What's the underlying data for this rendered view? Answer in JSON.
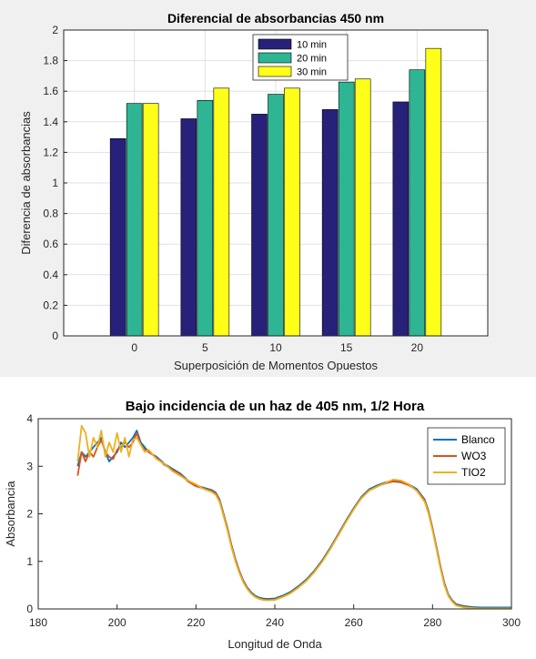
{
  "chart_data": [
    {
      "type": "bar",
      "title": "Diferencial de absorbancias 450 nm",
      "xlabel": "Superposición de Momentos Opuestos",
      "ylabel": "Diferencia de absorbancias",
      "categories": [
        "0",
        "5",
        "10",
        "15",
        "20"
      ],
      "series": [
        {
          "name": "10 min",
          "color": "#27217a",
          "values": [
            1.29,
            1.42,
            1.45,
            1.48,
            1.53
          ]
        },
        {
          "name": "20 min",
          "color": "#2eb594",
          "values": [
            1.52,
            1.54,
            1.58,
            1.66,
            1.74
          ]
        },
        {
          "name": "30 min",
          "color": "#ffff1a",
          "values": [
            1.52,
            1.62,
            1.62,
            1.68,
            1.88
          ]
        }
      ],
      "ylim": [
        0,
        2
      ],
      "yticks": [
        "0",
        "0.2",
        "0.4",
        "0.6",
        "0.8",
        "1",
        "1.2",
        "1.4",
        "1.6",
        "1.8",
        "2"
      ],
      "grid": true,
      "legend": "top-center"
    },
    {
      "type": "line",
      "title": "Bajo incidencia de un haz de 405 nm, 1/2 Hora",
      "xlabel": "Longitud de Onda",
      "ylabel": "Absorbancia",
      "xlim": [
        180,
        300
      ],
      "ylim": [
        0,
        4
      ],
      "xticks": [
        "180",
        "200",
        "220",
        "240",
        "260",
        "280",
        "300"
      ],
      "yticks": [
        "0",
        "1",
        "2",
        "3",
        "4"
      ],
      "grid": false,
      "legend": "top-right",
      "series": [
        {
          "name": "Blanco",
          "color": "#0072bd",
          "x": [
            190,
            191,
            192,
            193,
            194,
            195,
            196,
            197,
            198,
            199,
            200,
            201,
            202,
            203,
            204,
            205,
            206,
            207,
            208,
            210,
            212,
            214,
            216,
            218,
            220,
            222,
            224,
            225,
            226,
            227,
            228,
            229,
            230,
            231,
            232,
            233,
            234,
            235,
            236,
            237,
            238,
            240,
            242,
            244,
            246,
            248,
            250,
            252,
            254,
            256,
            258,
            260,
            262,
            264,
            266,
            268,
            270,
            272,
            274,
            276,
            278,
            279,
            280,
            281,
            282,
            283,
            284,
            285,
            286,
            288,
            290,
            292,
            294,
            296,
            298,
            300
          ],
          "y": [
            3.0,
            3.3,
            3.2,
            3.3,
            3.4,
            3.5,
            3.6,
            3.3,
            3.1,
            3.2,
            3.3,
            3.5,
            3.4,
            3.5,
            3.6,
            3.75,
            3.5,
            3.4,
            3.3,
            3.2,
            3.05,
            2.95,
            2.85,
            2.7,
            2.6,
            2.55,
            2.5,
            2.45,
            2.3,
            2.0,
            1.7,
            1.35,
            1.05,
            0.8,
            0.6,
            0.45,
            0.35,
            0.28,
            0.24,
            0.22,
            0.21,
            0.22,
            0.28,
            0.36,
            0.48,
            0.62,
            0.8,
            1.02,
            1.28,
            1.56,
            1.85,
            2.12,
            2.36,
            2.52,
            2.6,
            2.66,
            2.7,
            2.68,
            2.62,
            2.52,
            2.3,
            2.05,
            1.7,
            1.3,
            0.9,
            0.55,
            0.3,
            0.18,
            0.1,
            0.06,
            0.04,
            0.03,
            0.03,
            0.03,
            0.03,
            0.03
          ]
        },
        {
          "name": "WO3",
          "color": "#d95319",
          "x": [
            190,
            191,
            192,
            193,
            194,
            195,
            196,
            197,
            198,
            199,
            200,
            201,
            202,
            203,
            204,
            205,
            206,
            207,
            208,
            210,
            212,
            214,
            216,
            218,
            220,
            222,
            224,
            225,
            226,
            227,
            228,
            229,
            230,
            231,
            232,
            233,
            234,
            235,
            236,
            237,
            238,
            240,
            242,
            244,
            246,
            248,
            250,
            252,
            254,
            256,
            258,
            260,
            262,
            264,
            266,
            268,
            270,
            272,
            274,
            276,
            278,
            279,
            280,
            281,
            282,
            283,
            284,
            285,
            286,
            288,
            290,
            292,
            294,
            296,
            298,
            300
          ],
          "y": [
            2.8,
            3.3,
            3.1,
            3.3,
            3.2,
            3.4,
            3.55,
            3.3,
            3.2,
            3.15,
            3.35,
            3.4,
            3.5,
            3.4,
            3.5,
            3.7,
            3.45,
            3.35,
            3.3,
            3.18,
            3.03,
            2.93,
            2.83,
            2.68,
            2.58,
            2.53,
            2.48,
            2.43,
            2.28,
            1.98,
            1.68,
            1.33,
            1.03,
            0.78,
            0.58,
            0.43,
            0.33,
            0.26,
            0.22,
            0.2,
            0.19,
            0.2,
            0.26,
            0.34,
            0.46,
            0.6,
            0.78,
            1.0,
            1.26,
            1.54,
            1.83,
            2.1,
            2.34,
            2.5,
            2.58,
            2.64,
            2.68,
            2.66,
            2.6,
            2.5,
            2.28,
            2.03,
            1.68,
            1.28,
            0.88,
            0.53,
            0.28,
            0.16,
            0.08,
            0.04,
            0.02,
            0.01,
            0.01,
            0.01,
            0.01,
            0.01
          ]
        },
        {
          "name": "TIO2",
          "color": "#edb120",
          "x": [
            190,
            191,
            192,
            193,
            194,
            195,
            196,
            197,
            198,
            199,
            200,
            201,
            202,
            203,
            204,
            205,
            206,
            207,
            208,
            210,
            212,
            214,
            216,
            218,
            220,
            222,
            224,
            225,
            226,
            227,
            228,
            229,
            230,
            231,
            232,
            233,
            234,
            235,
            236,
            237,
            238,
            240,
            242,
            244,
            246,
            248,
            250,
            252,
            254,
            256,
            258,
            260,
            262,
            264,
            266,
            268,
            270,
            272,
            274,
            276,
            278,
            279,
            280,
            281,
            282,
            283,
            284,
            285,
            286,
            288,
            290,
            292,
            294,
            296,
            298,
            300
          ],
          "y": [
            3.1,
            3.85,
            3.7,
            3.2,
            3.6,
            3.4,
            3.75,
            3.2,
            3.5,
            3.3,
            3.7,
            3.3,
            3.6,
            3.2,
            3.55,
            3.6,
            3.45,
            3.3,
            3.35,
            3.15,
            3.05,
            2.9,
            2.8,
            2.7,
            2.62,
            2.52,
            2.46,
            2.4,
            2.25,
            1.95,
            1.65,
            1.3,
            1.0,
            0.76,
            0.56,
            0.42,
            0.32,
            0.25,
            0.21,
            0.19,
            0.18,
            0.19,
            0.25,
            0.33,
            0.45,
            0.59,
            0.77,
            0.99,
            1.25,
            1.53,
            1.82,
            2.09,
            2.33,
            2.49,
            2.57,
            2.65,
            2.72,
            2.7,
            2.62,
            2.48,
            2.25,
            2.0,
            1.65,
            1.25,
            0.85,
            0.5,
            0.27,
            0.15,
            0.07,
            0.03,
            0.02,
            0.01,
            0.01,
            0.01,
            0.01,
            0.01
          ]
        }
      ]
    }
  ]
}
